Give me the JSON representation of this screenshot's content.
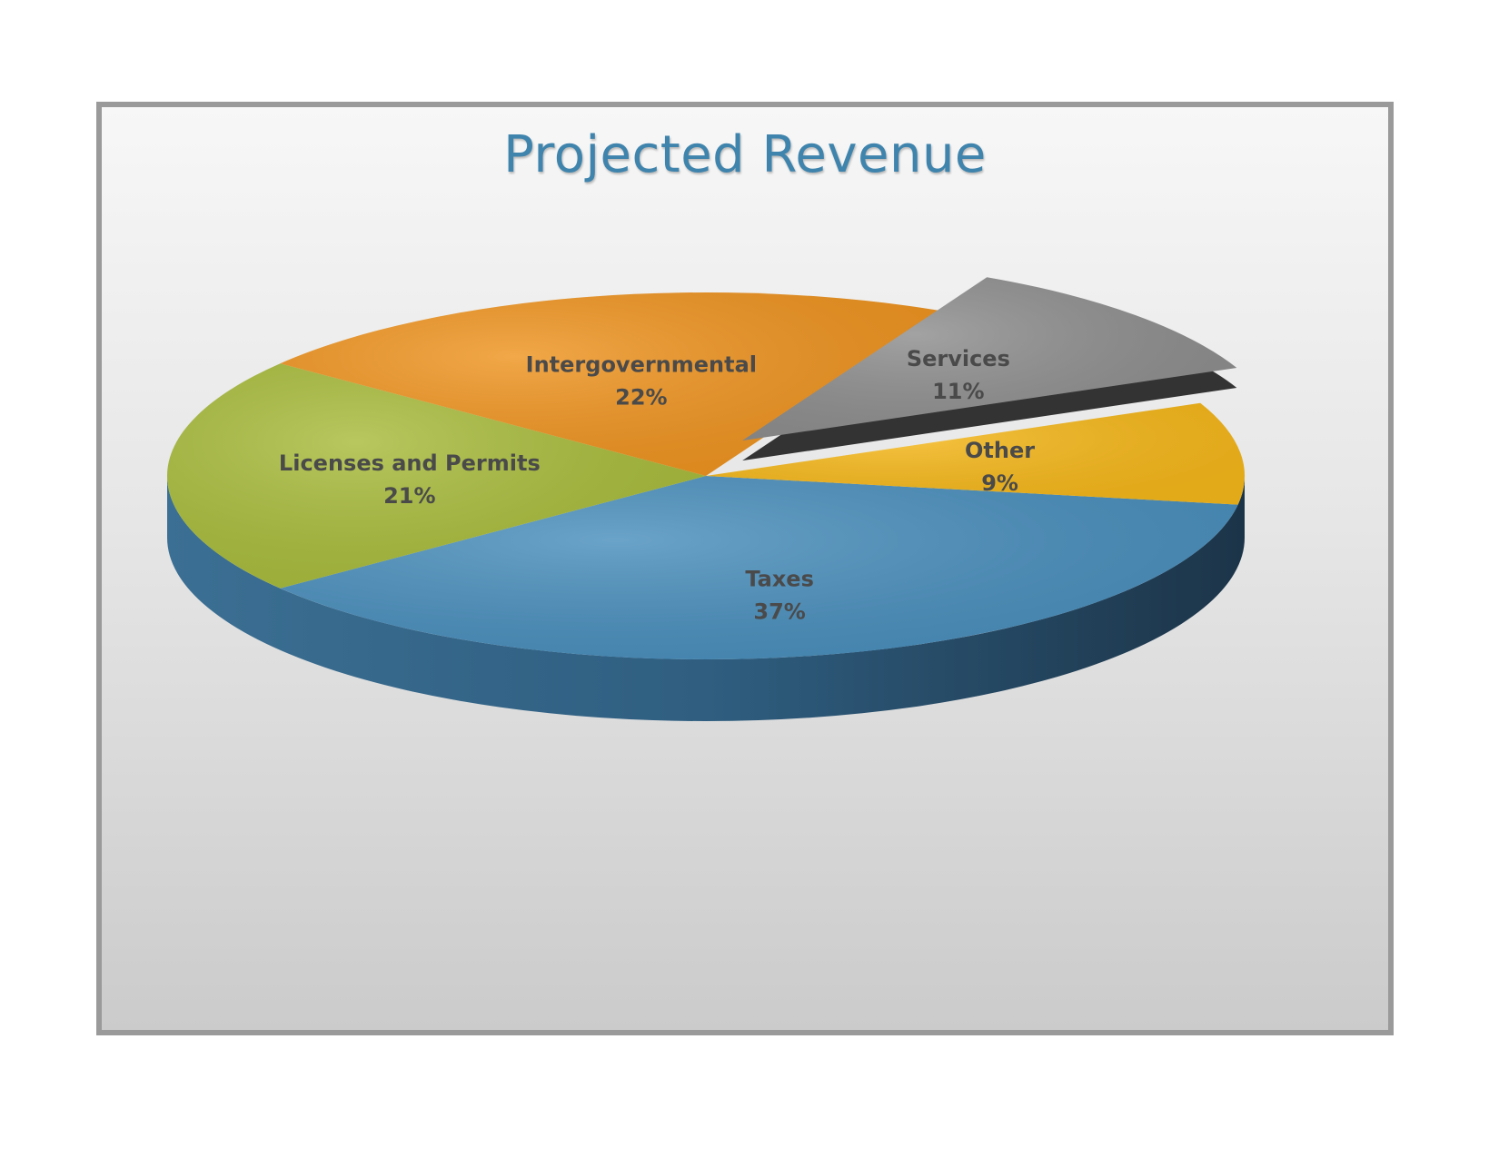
{
  "chart_data": {
    "type": "pie",
    "title": "Projected Revenue",
    "slices": [
      {
        "name": "Taxes",
        "percent_label": "37%",
        "value": 37,
        "color": "#4a8fbd"
      },
      {
        "name": "Licenses and Permits",
        "percent_label": "21%",
        "value": 21,
        "color": "#a9bc3c"
      },
      {
        "name": "Intergovernmental",
        "percent_label": "22%",
        "value": 22,
        "color": "#ef9420"
      },
      {
        "name": "Services",
        "percent_label": "11%",
        "value": 11,
        "color": "#8e8e8e",
        "exploded": true
      },
      {
        "name": "Other",
        "percent_label": "9%",
        "value": 9,
        "color": "#f6b81a"
      }
    ],
    "style": "3d-exploded-pie"
  }
}
